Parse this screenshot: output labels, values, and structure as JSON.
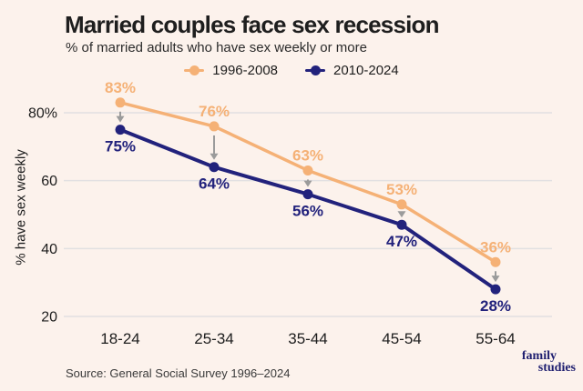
{
  "header": {
    "title": "Married couples face sex recession",
    "subtitle": "% of married adults who have sex weekly or more"
  },
  "legend": [
    {
      "label": "1996-2008",
      "color": "#F5B176"
    },
    {
      "label": "2010-2024",
      "color": "#22227C"
    }
  ],
  "chart_data": {
    "type": "line",
    "title": "Married couples face sex recession",
    "subtitle": "% of married adults who have sex weekly or more",
    "categories": [
      "18-24",
      "25-34",
      "35-44",
      "45-54",
      "55-64"
    ],
    "series": [
      {
        "name": "1996-2008",
        "color": "#F5B176",
        "values": [
          83,
          76,
          63,
          53,
          36
        ]
      },
      {
        "name": "2010-2024",
        "color": "#22227C",
        "values": [
          75,
          64,
          56,
          47,
          28
        ]
      }
    ],
    "unit": "%",
    "ylabel": "% have sex weekly",
    "xlabel": "",
    "yticks": [
      {
        "value": 80,
        "label": "80%"
      },
      {
        "value": 60,
        "label": "60"
      },
      {
        "value": 40,
        "label": "40"
      },
      {
        "value": 20,
        "label": "20"
      }
    ],
    "ylim": [
      14,
      90
    ],
    "grid": true,
    "legend_position": "top",
    "annotations": "gray downward arrows from each 1996-2008 point to the 2010-2024 point below"
  },
  "footer": {
    "source": "Source: General Social Survey 1996–2024",
    "logo": {
      "line1": "family",
      "line2": "studies",
      "color": "#1F1F70"
    }
  },
  "colors": {
    "background": "#FCF2EC",
    "grid": "#E2E0E2",
    "arrow": "#9B9B9B",
    "text": "#1D1D1D"
  }
}
